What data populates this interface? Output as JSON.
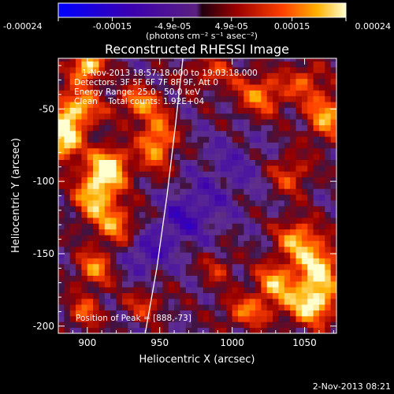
{
  "chart_data": {
    "type": "heatmap",
    "title": "Reconstructed RHESSI Image",
    "xlabel": "Heliocentric X (arcsec)",
    "ylabel": "Heliocentric Y (arcsec)",
    "xlim": [
      880,
      1072
    ],
    "ylim": [
      -205,
      -15
    ],
    "x_ticks": [
      900,
      950,
      1000,
      1050
    ],
    "x_tick_labels": [
      "900",
      "950",
      "1000",
      "1050"
    ],
    "y_ticks": [
      -50,
      -100,
      -150,
      -200
    ],
    "y_tick_labels": [
      "-50",
      "-100",
      "-150",
      "-200"
    ],
    "colorbar": {
      "range": [
        -0.00024,
        0.00024
      ],
      "ticks": [
        -0.00024,
        -0.00015,
        -4.9e-05,
        4.9e-05,
        0.00015,
        0.00024
      ],
      "tick_labels": [
        "-0.00024",
        "-0.00015",
        "-4.9e-05",
        "4.9e-05",
        "0.00015",
        "0.00024"
      ],
      "units_label": "(photons cm⁻² s⁻¹ asec⁻²)"
    },
    "annotations": [
      "1-Nov-2013 18:57:18.000 to 19:03:18.000",
      "Detectors: 3F 5F 6F 7F 8F 9F, Att 0",
      "Energy Range: 25.0 - 50.0 keV",
      "Clean    Total counts: 1.92E+04",
      "Position of Peak = [888,-73]"
    ],
    "limb_curve": [
      [
        940,
        -205
      ],
      [
        948,
        -160
      ],
      [
        955,
        -110
      ],
      [
        961,
        -60
      ],
      [
        966,
        -15
      ]
    ],
    "blobs": [
      {
        "x": 900,
        "y": -20,
        "sx": 8,
        "sy": 8,
        "amp": 0.00024
      },
      {
        "x": 892,
        "y": -50,
        "sx": 12,
        "sy": 10,
        "amp": 0.00021
      },
      {
        "x": 884,
        "y": -72,
        "sx": 8,
        "sy": 10,
        "amp": 0.00024
      },
      {
        "x": 915,
        "y": -90,
        "sx": 10,
        "sy": 10,
        "amp": 0.00024
      },
      {
        "x": 905,
        "y": -110,
        "sx": 10,
        "sy": 12,
        "amp": 0.0002
      },
      {
        "x": 935,
        "y": -45,
        "sx": 10,
        "sy": 8,
        "amp": 0.00016
      },
      {
        "x": 948,
        "y": -72,
        "sx": 9,
        "sy": 14,
        "amp": 0.00019
      },
      {
        "x": 920,
        "y": -130,
        "sx": 10,
        "sy": 10,
        "amp": 0.00015
      },
      {
        "x": 905,
        "y": -160,
        "sx": 9,
        "sy": 9,
        "amp": 0.00016
      },
      {
        "x": 898,
        "y": -190,
        "sx": 8,
        "sy": 8,
        "amp": 0.00013
      },
      {
        "x": 940,
        "y": -185,
        "sx": 10,
        "sy": 8,
        "amp": 0.0001
      },
      {
        "x": 1020,
        "y": -40,
        "sx": 12,
        "sy": 10,
        "amp": 0.00016
      },
      {
        "x": 1065,
        "y": -55,
        "sx": 10,
        "sy": 12,
        "amp": 0.00018
      },
      {
        "x": 1050,
        "y": -30,
        "sx": 9,
        "sy": 9,
        "amp": 0.00012
      },
      {
        "x": 985,
        "y": -25,
        "sx": 12,
        "sy": 8,
        "amp": 0.00011
      },
      {
        "x": 1040,
        "y": -95,
        "sx": 10,
        "sy": 10,
        "amp": 0.00012
      },
      {
        "x": 1045,
        "y": -140,
        "sx": 10,
        "sy": 10,
        "amp": 0.00018
      },
      {
        "x": 1060,
        "y": -160,
        "sx": 10,
        "sy": 12,
        "amp": 0.00022
      },
      {
        "x": 1055,
        "y": -185,
        "sx": 12,
        "sy": 10,
        "amp": 0.00023
      },
      {
        "x": 1030,
        "y": -170,
        "sx": 10,
        "sy": 10,
        "amp": 0.00018
      },
      {
        "x": 1010,
        "y": -190,
        "sx": 12,
        "sy": 8,
        "amp": 0.00014
      },
      {
        "x": 990,
        "y": -160,
        "sx": 8,
        "sy": 8,
        "amp": 9e-05
      },
      {
        "x": 975,
        "y": -120,
        "sx": 14,
        "sy": 14,
        "amp": -7e-05
      },
      {
        "x": 1000,
        "y": -90,
        "sx": 16,
        "sy": 16,
        "amp": -5e-05
      },
      {
        "x": 940,
        "y": -150,
        "sx": 12,
        "sy": 10,
        "amp": -9e-05
      },
      {
        "x": 960,
        "y": -130,
        "sx": 10,
        "sy": 10,
        "amp": -6e-05
      }
    ]
  },
  "footer": {
    "timestamp": "2-Nov-2013 08:21"
  }
}
